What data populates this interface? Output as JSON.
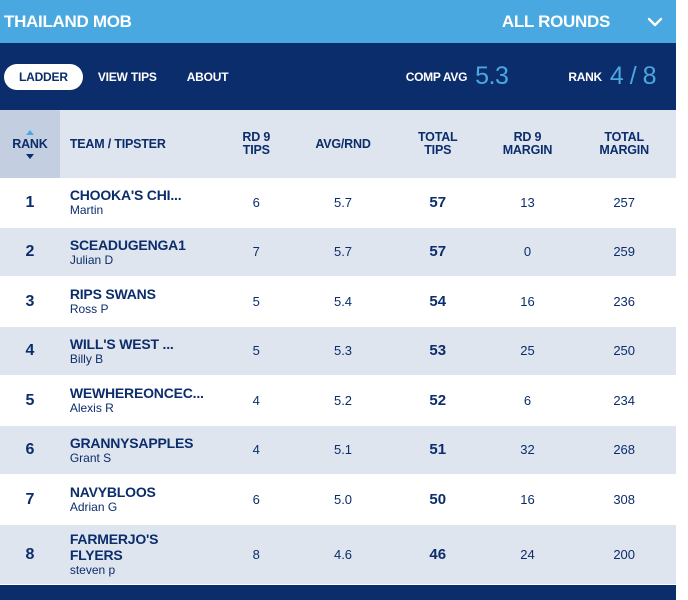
{
  "topbar": {
    "title": "THAILAND MOB",
    "rounds": "ALL ROUNDS"
  },
  "nav": {
    "tabs": [
      "LADDER",
      "VIEW TIPS",
      "ABOUT"
    ],
    "comp_avg_label": "COMP AVG",
    "comp_avg_value": "5.3",
    "rank_label": "RANK",
    "rank_value": "4 / 8"
  },
  "table": {
    "headers": {
      "rank": "RANK",
      "team": "TEAM / TIPSTER",
      "rd_tips": [
        "RD 9",
        "TIPS"
      ],
      "avg": "AVG/RND",
      "total_tips": [
        "TOTAL",
        "TIPS"
      ],
      "rd_margin": [
        "RD 9",
        "MARGIN"
      ],
      "total_margin": [
        "TOTAL",
        "MARGIN"
      ]
    },
    "rows": [
      {
        "rank": "1",
        "team": "CHOOKA'S CHI...",
        "tipster": "Martin",
        "rd_tips": "6",
        "avg": "5.7",
        "total": "57",
        "rd_margin": "13",
        "total_margin": "257"
      },
      {
        "rank": "2",
        "team": "SCEADUGENGA1",
        "tipster": "Julian D",
        "rd_tips": "7",
        "avg": "5.7",
        "total": "57",
        "rd_margin": "0",
        "total_margin": "259"
      },
      {
        "rank": "3",
        "team": "RIPS SWANS",
        "tipster": "Ross P",
        "rd_tips": "5",
        "avg": "5.4",
        "total": "54",
        "rd_margin": "16",
        "total_margin": "236"
      },
      {
        "rank": "4",
        "team": "WILL'S WEST ...",
        "tipster": "Billy B",
        "rd_tips": "5",
        "avg": "5.3",
        "total": "53",
        "rd_margin": "25",
        "total_margin": "250"
      },
      {
        "rank": "5",
        "team": "WEWHEREONCEC...",
        "tipster": "Alexis R",
        "rd_tips": "4",
        "avg": "5.2",
        "total": "52",
        "rd_margin": "6",
        "total_margin": "234"
      },
      {
        "rank": "6",
        "team": "GRANNYSAPPLES",
        "tipster": "Grant S",
        "rd_tips": "4",
        "avg": "5.1",
        "total": "51",
        "rd_margin": "32",
        "total_margin": "268"
      },
      {
        "rank": "7",
        "team": "NAVYBLOOS",
        "tipster": "Adrian G",
        "rd_tips": "6",
        "avg": "5.0",
        "total": "50",
        "rd_margin": "16",
        "total_margin": "308"
      },
      {
        "rank": "8",
        "team": "FARMERJO'S FLYERS",
        "tipster": "steven p",
        "rd_tips": "8",
        "avg": "4.6",
        "total": "46",
        "rd_margin": "24",
        "total_margin": "200"
      }
    ]
  },
  "colors": {
    "navy": "#0b2d6b",
    "sky": "#4aa8e0",
    "row_alt": "#dfe5ef",
    "rank_col": "#c3cee0"
  },
  "icons": {
    "rounds_toggle": "chevron-down-icon",
    "sort": "sort-icon"
  }
}
